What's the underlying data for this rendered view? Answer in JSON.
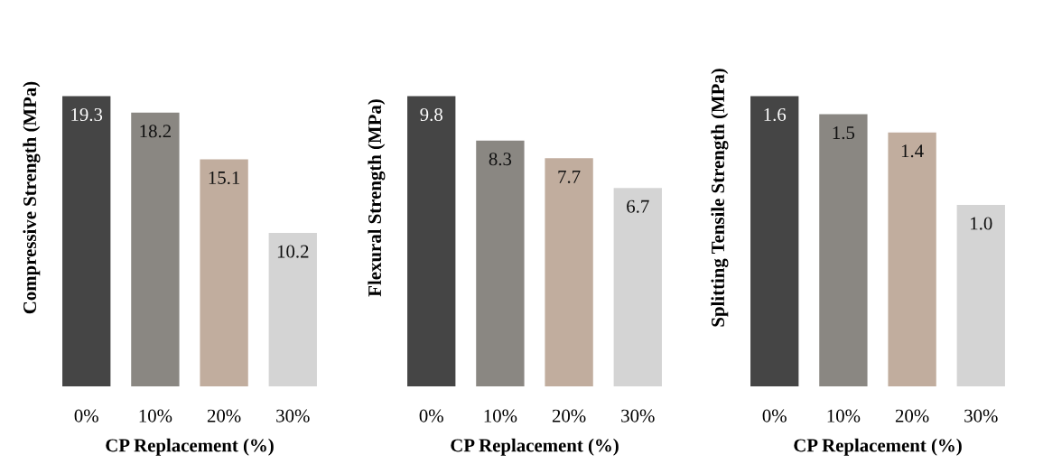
{
  "chart_data": [
    {
      "type": "bar",
      "categories": [
        "0%",
        "10%",
        "20%",
        "30%"
      ],
      "values": [
        19.3,
        18.2,
        15.1,
        10.2
      ],
      "colors": [
        "#454545",
        "#8a8782",
        "#c1ad9e",
        "#d4d4d4"
      ],
      "xlabel": "CP Replacement (%)",
      "ylabel": "Compressive Strength (MPa)",
      "data_labels": true,
      "tick_labels": "x",
      "grid": false,
      "legend": false
    },
    {
      "type": "bar",
      "categories": [
        "0%",
        "10%",
        "20%",
        "30%"
      ],
      "values": [
        9.8,
        8.3,
        7.7,
        6.7
      ],
      "colors": [
        "#454545",
        "#8a8782",
        "#c1ad9e",
        "#d4d4d4"
      ],
      "xlabel": "CP Replacement (%)",
      "ylabel": "Flexural Strength (MPa)",
      "data_labels": true,
      "tick_labels": "x",
      "grid": false,
      "legend": false
    },
    {
      "type": "bar",
      "categories": [
        "0%",
        "10%",
        "20%",
        "30%"
      ],
      "values": [
        1.6,
        1.5,
        1.4,
        1.0
      ],
      "value_labels": [
        "1.6",
        "1.5",
        "1.4",
        "1.0"
      ],
      "colors": [
        "#454545",
        "#8a8782",
        "#c1ad9e",
        "#d4d4d4"
      ],
      "xlabel": "CP Replacement (%)",
      "ylabel": "Splitting Tensile Strength (MPa)",
      "tick_labels": "x",
      "grid": false,
      "legend": false
    }
  ]
}
